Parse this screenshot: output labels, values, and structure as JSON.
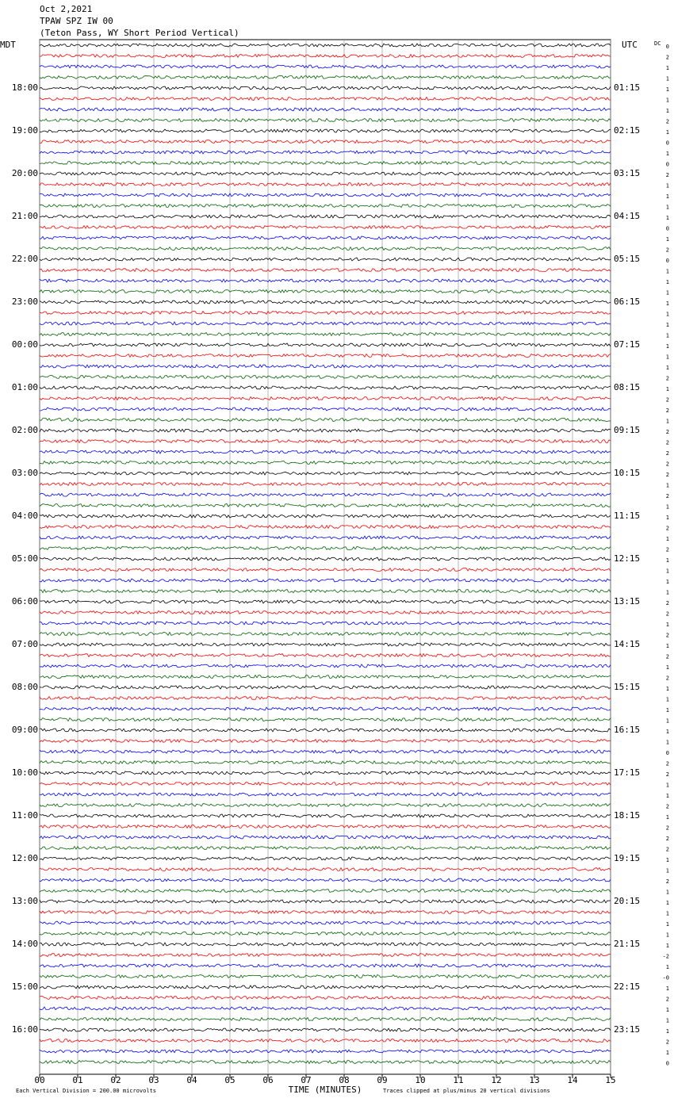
{
  "chart_data": {
    "type": "helicorder",
    "title_lines": [
      "Oct 2,2021",
      "TPAW SPZ IW 00",
      "(Teton Pass, WY Short Period Vertical)"
    ],
    "left_timezone": "MDT",
    "right_timezone": "UTC",
    "dc_header": "DC",
    "left_labels": [
      "18:00",
      "19:00",
      "20:00",
      "21:00",
      "22:00",
      "23:00",
      "00:00",
      "01:00",
      "02:00",
      "03:00",
      "04:00",
      "05:00",
      "06:00",
      "07:00",
      "08:00",
      "09:00",
      "10:00",
      "11:00",
      "12:00",
      "13:00",
      "14:00",
      "15:00",
      "16:00"
    ],
    "right_labels": [
      "01:15",
      "02:15",
      "03:15",
      "04:15",
      "05:15",
      "06:15",
      "07:15",
      "08:15",
      "09:15",
      "10:15",
      "11:15",
      "12:15",
      "13:15",
      "14:15",
      "15:15",
      "16:15",
      "17:15",
      "18:15",
      "19:15",
      "20:15",
      "21:15",
      "22:15",
      "23:15"
    ],
    "dc_offsets": [
      "0",
      "2",
      "1",
      "1",
      "1",
      "1",
      "1",
      "2",
      "1",
      "0",
      "1",
      "0",
      "2",
      "1",
      "1",
      "1",
      "1",
      "0",
      "1",
      "2",
      "0",
      "1",
      "1",
      "1",
      "1",
      "1",
      "1",
      "1",
      "1",
      "1",
      "1",
      "2",
      "1",
      "2",
      "2",
      "1",
      "2",
      "2",
      "2",
      "2",
      "2",
      "1",
      "2",
      "1",
      "1",
      "2",
      "1",
      "2",
      "1",
      "1",
      "1",
      "1",
      "2",
      "2",
      "1",
      "2",
      "1",
      "2",
      "1",
      "2",
      "1",
      "1",
      "1",
      "1",
      "1",
      "1",
      "0",
      "2",
      "2",
      "1",
      "1",
      "2",
      "1",
      "2",
      "2",
      "2",
      "1",
      "1",
      "2",
      "1",
      "1",
      "1",
      "1",
      "1",
      "1",
      "-2",
      "1",
      "-0",
      "1",
      "2",
      "1",
      "1",
      "1",
      "2",
      "1",
      "0"
    ],
    "trace_colors": [
      "#000000",
      "#ff0000",
      "#0000ff",
      "#006400"
    ],
    "xlabel": "TIME (MINUTES)",
    "xlim": [
      0,
      15
    ],
    "xticks": [
      {
        "value": 0,
        "label": "00"
      },
      {
        "value": 1,
        "label": "01"
      },
      {
        "value": 2,
        "label": "02"
      },
      {
        "value": 3,
        "label": "03"
      },
      {
        "value": 4,
        "label": "04"
      },
      {
        "value": 5,
        "label": "05"
      },
      {
        "value": 6,
        "label": "06"
      },
      {
        "value": 7,
        "label": "07"
      },
      {
        "value": 8,
        "label": "08"
      },
      {
        "value": 9,
        "label": "09"
      },
      {
        "value": 10,
        "label": "10"
      },
      {
        "value": 11,
        "label": "11"
      },
      {
        "value": 12,
        "label": "12"
      },
      {
        "value": 13,
        "label": "13"
      },
      {
        "value": 14,
        "label": "14"
      },
      {
        "value": 15,
        "label": "15"
      }
    ],
    "grid": true,
    "footer_left": "Each Vertical Division =  200.00 microvolts",
    "footer_right": "Traces clipped at plus/minus 20 vertical divisions"
  }
}
